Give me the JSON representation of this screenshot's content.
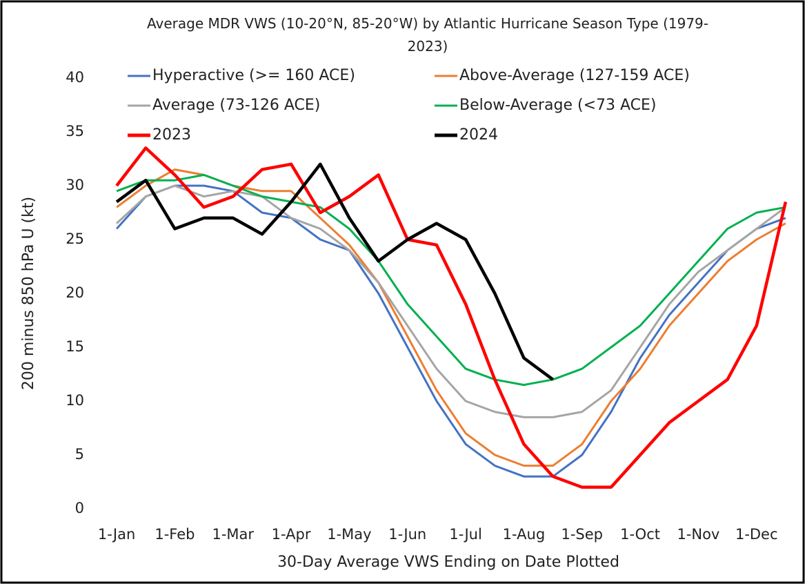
{
  "chart_data": {
    "type": "line",
    "title": "Average MDR VWS (10-20°N, 85-20°W) by Atlantic Hurricane Season Type (1979-2023)",
    "y_label": "200 minus 850 hPa U (kt)",
    "x_label": "30-Day Average VWS Ending on Date Plotted",
    "categories": [
      "1-Jan",
      null,
      "1-Feb",
      null,
      "1-Mar",
      null,
      "1-Apr",
      null,
      "1-May",
      null,
      "1-Jun",
      null,
      "1-Jul",
      null,
      "1-Aug",
      null,
      "1-Sep",
      null,
      "1-Oct",
      null,
      "1-Nov",
      null,
      "1-Dec",
      null
    ],
    "ylim": [
      0,
      40
    ],
    "yticks": [
      0,
      5,
      10,
      15,
      20,
      25,
      30,
      35,
      40
    ],
    "legend": "top",
    "series": [
      {
        "name": "Hyperactive (>= 160 ACE)",
        "color": "#4472c4",
        "values": [
          26,
          29,
          30,
          30,
          29.5,
          27.5,
          27,
          25,
          24,
          20,
          15,
          10,
          6,
          4,
          3,
          3,
          5,
          9,
          14,
          18,
          21,
          24,
          26,
          27
        ]
      },
      {
        "name": "Above-Average (127-159 ACE)",
        "color": "#ed7d31",
        "values": [
          28,
          30,
          31.5,
          31,
          30,
          29.5,
          29.5,
          27,
          24.5,
          21,
          16,
          11,
          7,
          5,
          4,
          4,
          6,
          10,
          13,
          17,
          20,
          23,
          25,
          26.5
        ]
      },
      {
        "name": "Average (73-126 ACE)",
        "color": "#a5a5a5",
        "values": [
          26.5,
          29,
          30,
          29,
          29.5,
          29,
          27,
          26,
          24,
          21,
          17,
          13,
          10,
          9,
          8.5,
          8.5,
          9,
          11,
          15,
          19,
          22,
          24,
          26,
          28
        ]
      },
      {
        "name": "Below-Average (<73 ACE)",
        "color": "#00b050",
        "values": [
          29.5,
          30.5,
          30.5,
          31,
          30,
          29,
          28.5,
          28,
          26,
          23,
          19,
          16,
          13,
          12,
          11.5,
          12,
          13,
          15,
          17,
          20,
          23,
          26,
          27.5,
          28
        ]
      },
      {
        "name": "2023",
        "color": "#ff0000",
        "values": [
          30,
          33.5,
          31,
          28,
          29,
          31.5,
          32,
          27.5,
          29,
          31,
          25,
          24.5,
          19,
          12,
          6,
          3,
          2,
          2,
          5,
          8,
          10,
          12,
          17,
          28.5
        ]
      },
      {
        "name": "2024",
        "color": "#000000",
        "values": [
          28.5,
          30.5,
          26,
          27,
          27,
          25.5,
          28.5,
          32,
          27,
          23,
          25,
          26.5,
          25,
          20,
          14,
          12,
          null,
          null,
          null,
          null,
          null,
          null,
          null,
          null
        ]
      }
    ]
  }
}
